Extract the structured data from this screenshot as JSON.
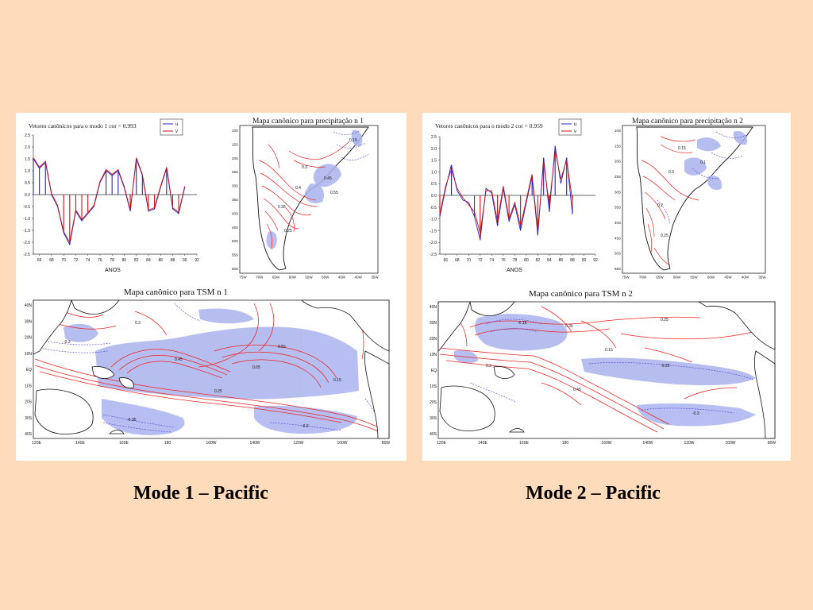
{
  "colors": {
    "background": "#fedcbb",
    "series_u": "#2323cc",
    "series_v": "#cc1111",
    "positive_contour": "#ee2222",
    "negative_contour": "#5533dd",
    "shade": "#aab3ee"
  },
  "captions": {
    "left": "Mode 1 – Pacific",
    "right": "Mode 2 – Pacific"
  },
  "chart_data": [
    {
      "type": "line",
      "title": "Vetores canônicos para o modo 1   cor = 0.993",
      "xlabel": "ANOS",
      "ylabel": "",
      "xlim": [
        65,
        92
      ],
      "ylim": [
        -2.5,
        2.5
      ],
      "x_ticks": [
        "66",
        "68",
        "70",
        "72",
        "74",
        "76",
        "78",
        "80",
        "82",
        "84",
        "86",
        "88",
        "90",
        "92"
      ],
      "y_ticks": [
        "2.5",
        "2.0",
        "1.5",
        "1.0",
        "0.5",
        "0.0",
        "-0.5",
        "-1.0",
        "-1.5",
        "-2.0",
        "-2.5"
      ],
      "x": [
        65,
        66,
        67,
        68,
        69,
        70,
        71,
        72,
        73,
        74,
        75,
        76,
        77,
        78,
        79,
        80,
        81,
        82,
        83,
        84,
        85,
        86,
        87,
        88,
        89,
        90
      ],
      "series": [
        {
          "name": "u",
          "values": [
            1.5,
            1.1,
            1.35,
            0.0,
            -0.5,
            -1.6,
            -2.1,
            -0.7,
            -1.1,
            -0.8,
            -0.5,
            0.5,
            1.0,
            0.8,
            1.0,
            0.3,
            -0.7,
            1.5,
            0.8,
            -0.7,
            -0.6,
            0.3,
            1.1,
            -0.6,
            -0.8,
            0.3
          ]
        },
        {
          "name": "v",
          "values": [
            1.55,
            1.15,
            1.4,
            0.05,
            -0.45,
            -1.55,
            -2.0,
            -0.65,
            -1.05,
            -0.75,
            -0.45,
            0.55,
            1.05,
            0.85,
            1.05,
            0.35,
            -0.65,
            1.55,
            0.85,
            -0.65,
            -0.55,
            0.35,
            1.15,
            -0.55,
            -0.75,
            0.35
          ]
        }
      ],
      "legend": "top-right",
      "grid": false
    },
    {
      "type": "line",
      "title": "Vetores canônicos para o modo 2   cor = 0.959",
      "xlabel": "ANOS",
      "ylabel": "",
      "xlim": [
        65,
        92
      ],
      "ylim": [
        -2.5,
        2.5
      ],
      "x_ticks": [
        "66",
        "68",
        "70",
        "72",
        "74",
        "76",
        "78",
        "80",
        "82",
        "84",
        "86",
        "88",
        "90",
        "92"
      ],
      "y_ticks": [
        "2.5",
        "2.0",
        "1.5",
        "1.0",
        "0.5",
        "0.0",
        "-0.5",
        "-1.0",
        "-1.5",
        "-2.0",
        "-2.5"
      ],
      "x": [
        65,
        66,
        67,
        68,
        69,
        70,
        71,
        72,
        73,
        74,
        75,
        76,
        77,
        78,
        79,
        80,
        81,
        82,
        83,
        84,
        85,
        86,
        87,
        88
      ],
      "series": [
        {
          "name": "u",
          "values": [
            -0.9,
            0.3,
            1.3,
            0.2,
            -0.2,
            -0.3,
            -0.9,
            -1.9,
            0.3,
            0.1,
            -1.3,
            0.3,
            -1.1,
            -0.4,
            -1.5,
            -0.3,
            0.8,
            -1.7,
            1.6,
            -0.7,
            2.1,
            0.5,
            1.6,
            -0.8
          ]
        },
        {
          "name": "v",
          "values": [
            -0.8,
            0.4,
            1.1,
            0.3,
            -0.1,
            -0.4,
            -0.7,
            -1.6,
            0.2,
            0.2,
            -1.1,
            0.4,
            -1.0,
            -0.3,
            -1.3,
            -0.2,
            0.9,
            -1.5,
            1.4,
            -0.4,
            1.9,
            0.7,
            1.5,
            -0.2
          ]
        }
      ],
      "legend": "top-right",
      "grid": false
    }
  ],
  "maps": {
    "precip_left": {
      "title": "Mapa canônico para precipitação   n  1",
      "lat_labels": [
        "10S",
        "15S",
        "20S",
        "25S",
        "30S",
        "35S",
        "40S",
        "45S",
        "50S",
        "55S",
        "60S"
      ],
      "lon_labels": [
        "75W",
        "70W",
        "65W",
        "60W",
        "55W",
        "50W",
        "45W",
        "40W",
        "35W"
      ],
      "values": [
        "0.4",
        "0.35",
        "0.45",
        "0.55",
        "0.25",
        "0.3",
        "0.15"
      ]
    },
    "precip_right": {
      "title": "Mapa canônico para precipitação   n  2",
      "lat_labels": [
        "10S",
        "15S",
        "20S",
        "25S",
        "30S",
        "35S",
        "40S",
        "45S",
        "50S",
        "55S"
      ],
      "lon_labels": [
        "75W",
        "70W",
        "65W",
        "60W",
        "55W",
        "50W",
        "45W",
        "40W",
        "35W"
      ],
      "values": [
        "0.3",
        "0.2",
        "0.1",
        "0.15",
        "0.25"
      ]
    },
    "tsm_left": {
      "title": "Mapa canônico para TSM   n  1",
      "lat_labels": [
        "40N",
        "30N",
        "20N",
        "10N",
        "EQ",
        "10S",
        "20S",
        "30S",
        "40S"
      ],
      "lon_labels": [
        "120E",
        "140E",
        "160E",
        "180",
        "160W",
        "140W",
        "120W",
        "100W",
        "80W"
      ],
      "values": [
        "0.55",
        "0.45",
        "0.3",
        "0.65",
        "0.15",
        "-0.3",
        "-0.35",
        "-0.2",
        "0.25"
      ]
    },
    "tsm_right": {
      "title": "Mapa canônico para TSM   n  2",
      "lat_labels": [
        "40N",
        "30N",
        "20N",
        "10N",
        "EQ",
        "10S",
        "20S",
        "30S",
        "40S"
      ],
      "lon_labels": [
        "120E",
        "140E",
        "160E",
        "180",
        "160W",
        "140W",
        "120W",
        "100W",
        "80W"
      ],
      "values": [
        "0.35",
        "-0.15",
        "0.25",
        "0.15",
        "-0.25",
        "0.45",
        "-0.3",
        "0.2"
      ]
    }
  }
}
